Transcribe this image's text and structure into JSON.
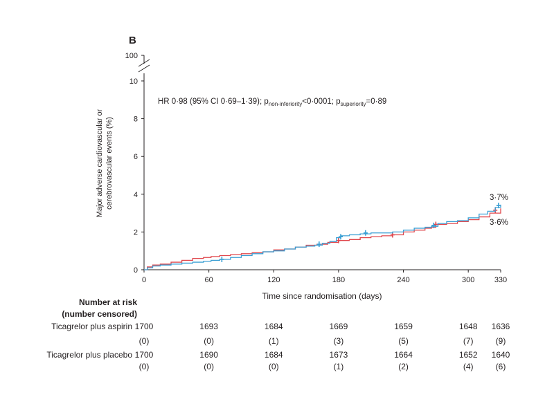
{
  "chart_data": {
    "type": "line",
    "panel_label": "B",
    "title": "",
    "xlabel": "Time since randomisation (days)",
    "ylabel_lines": [
      "Major adverse cardiovascular or",
      "cerebrovascular events (%)"
    ],
    "xlim": [
      0,
      330
    ],
    "ylim": [
      0,
      10
    ],
    "x_ticks": [
      0,
      60,
      120,
      180,
      240,
      300,
      330
    ],
    "y_ticks": [
      0,
      2,
      4,
      6,
      8,
      10
    ],
    "y_break_label": "100",
    "annotation": {
      "pre": "HR 0·98 (95% CI 0·69–1·39); p",
      "sub1": "non-inferiority",
      "mid": "<0·0001; p",
      "sub2": "superiority",
      "post": "=0·89"
    },
    "series": [
      {
        "name": "Ticagrelor plus aspirin",
        "color": "#3a9fd4",
        "end_label": "3·7%",
        "points": [
          [
            0,
            0
          ],
          [
            3,
            0.1
          ],
          [
            8,
            0.2
          ],
          [
            15,
            0.25
          ],
          [
            25,
            0.3
          ],
          [
            35,
            0.35
          ],
          [
            45,
            0.4
          ],
          [
            55,
            0.45
          ],
          [
            62,
            0.5
          ],
          [
            70,
            0.55
          ],
          [
            80,
            0.65
          ],
          [
            90,
            0.75
          ],
          [
            100,
            0.85
          ],
          [
            110,
            0.95
          ],
          [
            120,
            1.0
          ],
          [
            130,
            1.1
          ],
          [
            140,
            1.2
          ],
          [
            150,
            1.25
          ],
          [
            158,
            1.3
          ],
          [
            165,
            1.4
          ],
          [
            172,
            1.5
          ],
          [
            178,
            1.7
          ],
          [
            182,
            1.8
          ],
          [
            190,
            1.85
          ],
          [
            200,
            1.9
          ],
          [
            210,
            1.95
          ],
          [
            220,
            1.95
          ],
          [
            230,
            2.0
          ],
          [
            240,
            2.1
          ],
          [
            250,
            2.2
          ],
          [
            260,
            2.25
          ],
          [
            266,
            2.3
          ],
          [
            272,
            2.45
          ],
          [
            280,
            2.55
          ],
          [
            290,
            2.6
          ],
          [
            300,
            2.75
          ],
          [
            310,
            2.95
          ],
          [
            318,
            3.1
          ],
          [
            325,
            3.3
          ],
          [
            330,
            3.45
          ]
        ],
        "censor_marks": [
          [
            72,
            0.55
          ],
          [
            162,
            1.35
          ],
          [
            182,
            1.75
          ],
          [
            205,
            1.95
          ],
          [
            268,
            2.35
          ],
          [
            328,
            3.4
          ]
        ]
      },
      {
        "name": "Ticagrelor plus placebo",
        "color": "#e0474c",
        "end_label": "3·6%",
        "points": [
          [
            0,
            0
          ],
          [
            3,
            0.15
          ],
          [
            8,
            0.25
          ],
          [
            15,
            0.3
          ],
          [
            25,
            0.4
          ],
          [
            35,
            0.5
          ],
          [
            45,
            0.6
          ],
          [
            55,
            0.65
          ],
          [
            62,
            0.7
          ],
          [
            70,
            0.75
          ],
          [
            80,
            0.8
          ],
          [
            90,
            0.85
          ],
          [
            100,
            0.9
          ],
          [
            110,
            0.95
          ],
          [
            120,
            1.05
          ],
          [
            130,
            1.1
          ],
          [
            140,
            1.2
          ],
          [
            150,
            1.3
          ],
          [
            160,
            1.35
          ],
          [
            170,
            1.45
          ],
          [
            180,
            1.55
          ],
          [
            190,
            1.6
          ],
          [
            200,
            1.7
          ],
          [
            210,
            1.75
          ],
          [
            220,
            1.8
          ],
          [
            230,
            1.85
          ],
          [
            240,
            2.0
          ],
          [
            250,
            2.1
          ],
          [
            260,
            2.2
          ],
          [
            266,
            2.25
          ],
          [
            270,
            2.4
          ],
          [
            280,
            2.45
          ],
          [
            290,
            2.55
          ],
          [
            300,
            2.65
          ],
          [
            310,
            2.8
          ],
          [
            320,
            3.0
          ],
          [
            330,
            3.25
          ]
        ],
        "censor_marks": [
          [
            180,
            1.55
          ],
          [
            230,
            1.85
          ],
          [
            270,
            2.4
          ],
          [
            325,
            3.15
          ]
        ]
      }
    ]
  },
  "risk_table": {
    "heading_line1": "Number at risk",
    "heading_line2": "(number censored)",
    "rows": [
      {
        "label": "Ticagrelor plus aspirin",
        "at_risk": [
          "1700",
          "1693",
          "1684",
          "1669",
          "1659",
          "1648",
          "1636"
        ],
        "censored": [
          "(0)",
          "(0)",
          "(1)",
          "(3)",
          "(5)",
          "(7)",
          "(9)"
        ]
      },
      {
        "label": "Ticagrelor plus placebo",
        "at_risk": [
          "1700",
          "1690",
          "1684",
          "1673",
          "1664",
          "1652",
          "1640"
        ],
        "censored": [
          "(0)",
          "(0)",
          "(0)",
          "(1)",
          "(2)",
          "(4)",
          "(6)"
        ]
      }
    ]
  }
}
